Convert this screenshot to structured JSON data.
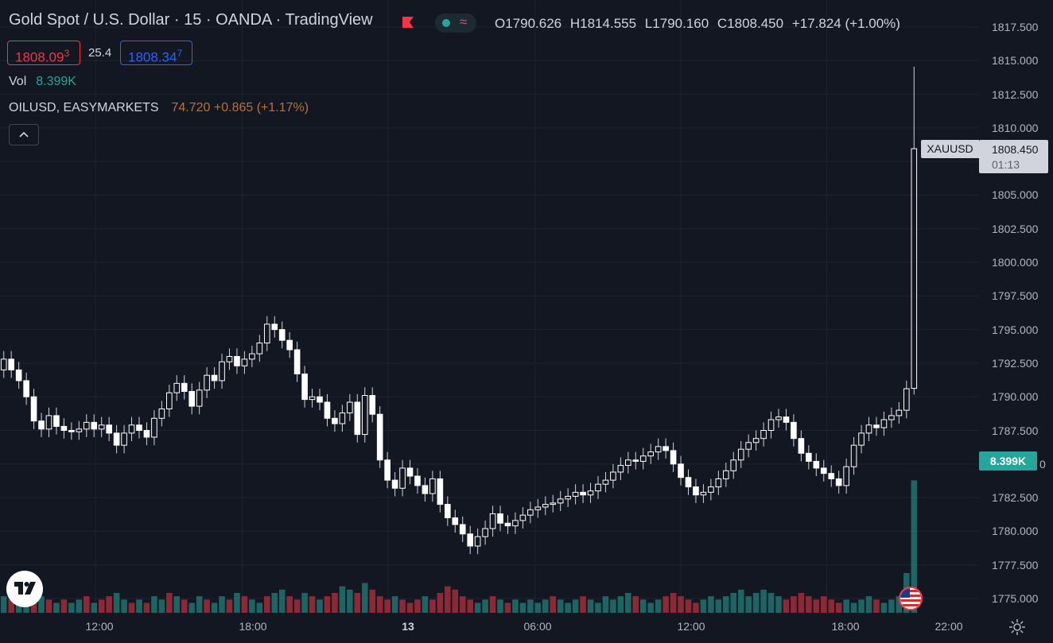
{
  "header": {
    "title": "Gold Spot / U.S. Dollar · 15 · OANDA · TradingView",
    "flag_color": "#f23645",
    "status_dot_color": "#26a69a",
    "status_wave_glyph": "≈",
    "ohlc": {
      "open": "O1790.626",
      "high": "H1814.555",
      "low": "L1790.160",
      "close": "C1808.450",
      "change": "+17.824 (+1.00%)"
    }
  },
  "quote": {
    "bid_main": "1808.09",
    "bid_small": "3",
    "spread": "25.4",
    "ask_main": "1808.34",
    "ask_small": "7"
  },
  "volume_legend": {
    "label": "Vol",
    "value": "8.399K"
  },
  "compare_legend": {
    "symbol": "OILUSD, EASYMARKETS",
    "values": "74.720  +0.865 (+1.17%)"
  },
  "price_axis": {
    "ticks": [
      "1817.500",
      "1815.000",
      "1812.500",
      "1810.000",
      "1805.000",
      "1802.500",
      "1800.000",
      "1797.500",
      "1795.000",
      "1792.500",
      "1790.000",
      "1787.500",
      "1782.500",
      "1780.000",
      "1777.500",
      "1775.000"
    ],
    "last_symbol": "XAUUSD",
    "last_price": "1808.450",
    "countdown": "01:13",
    "volume_tag": "8.399K",
    "partial_label": "0"
  },
  "time_axis": {
    "labels": [
      "12:00",
      "18:00",
      "13",
      "06:00",
      "12:00",
      "18:00",
      "22:00"
    ]
  },
  "chart_data": {
    "type": "candlestick",
    "title": "Gold Spot / U.S. Dollar · 15 · OANDA · TradingView",
    "ylim": [
      1774.5,
      1818.5
    ],
    "xlim": [
      -0.5,
      121.5
    ],
    "colors": {
      "up": "#ffffff",
      "down": "#ffffff",
      "vol_up": "#26a69a",
      "vol_down": "#f23645",
      "grid": "#1f2330"
    },
    "grid": true,
    "x_tick_index": {
      "12:00": 12.2,
      "18:00": 31.7,
      "13": 51.1,
      "06:00": 70.6,
      "12:00b": 90.0,
      "18:00b": 109.4,
      "22:00": 122.4
    },
    "close": [
      1792.8,
      1792.0,
      1791.2,
      1790.0,
      1788.2,
      1787.6,
      1788.6,
      1787.8,
      1787.5,
      1787.4,
      1787.6,
      1788.1,
      1787.6,
      1787.9,
      1787.3,
      1786.4,
      1787.3,
      1787.9,
      1787.5,
      1787.0,
      1788.4,
      1789.1,
      1790.3,
      1791.0,
      1790.4,
      1789.3,
      1790.5,
      1791.6,
      1791.2,
      1792.6,
      1793.0,
      1792.3,
      1792.8,
      1793.2,
      1794.0,
      1795.4,
      1795.0,
      1794.2,
      1793.5,
      1791.7,
      1789.8,
      1790.0,
      1789.6,
      1788.4,
      1788.0,
      1788.8,
      1789.6,
      1787.2,
      1790.1,
      1788.7,
      1785.3,
      1783.8,
      1783.2,
      1784.7,
      1784.1,
      1783.4,
      1782.8,
      1783.9,
      1782.0,
      1781.0,
      1780.5,
      1779.8,
      1778.9,
      1779.6,
      1780.2,
      1781.3,
      1780.6,
      1780.4,
      1780.8,
      1781.2,
      1781.6,
      1781.8,
      1782.0,
      1782.1,
      1782.4,
      1782.6,
      1782.9,
      1782.7,
      1783.0,
      1783.5,
      1783.8,
      1784.4,
      1784.9,
      1785.3,
      1785.2,
      1785.6,
      1785.9,
      1786.3,
      1786.0,
      1785.0,
      1784.0,
      1783.3,
      1782.7,
      1782.9,
      1783.3,
      1783.9,
      1784.5,
      1785.3,
      1786.1,
      1786.6,
      1786.9,
      1787.5,
      1788.3,
      1788.5,
      1788.1,
      1786.9,
      1785.8,
      1785.2,
      1784.7,
      1784.3,
      1783.9,
      1783.4,
      1784.8,
      1786.4,
      1787.3,
      1787.9,
      1787.7,
      1788.3,
      1788.6,
      1789.0,
      1790.6,
      1808.45
    ],
    "open": [
      1792.0,
      1792.8,
      1792.0,
      1791.2,
      1790.0,
      1788.2,
      1787.6,
      1788.6,
      1787.8,
      1787.5,
      1787.4,
      1787.6,
      1788.1,
      1787.6,
      1787.9,
      1787.3,
      1786.4,
      1787.3,
      1787.9,
      1787.5,
      1787.0,
      1788.4,
      1789.1,
      1790.3,
      1791.0,
      1790.4,
      1789.3,
      1790.5,
      1791.6,
      1791.2,
      1792.6,
      1793.0,
      1792.3,
      1792.8,
      1793.2,
      1794.0,
      1795.4,
      1795.0,
      1794.2,
      1793.5,
      1791.7,
      1789.8,
      1790.0,
      1789.6,
      1788.4,
      1788.0,
      1788.8,
      1789.6,
      1787.2,
      1790.1,
      1788.7,
      1785.3,
      1783.8,
      1783.2,
      1784.7,
      1784.1,
      1783.4,
      1782.8,
      1783.9,
      1782.0,
      1781.0,
      1780.5,
      1779.8,
      1778.9,
      1779.6,
      1780.2,
      1781.3,
      1780.6,
      1780.4,
      1780.8,
      1781.2,
      1781.6,
      1781.8,
      1782.0,
      1782.1,
      1782.4,
      1782.6,
      1782.9,
      1782.7,
      1783.0,
      1783.5,
      1783.8,
      1784.4,
      1784.9,
      1785.3,
      1785.2,
      1785.6,
      1785.9,
      1786.3,
      1786.0,
      1785.0,
      1784.0,
      1783.3,
      1782.7,
      1782.9,
      1783.3,
      1783.9,
      1784.5,
      1785.3,
      1786.1,
      1786.6,
      1786.9,
      1787.5,
      1788.3,
      1788.5,
      1788.1,
      1786.9,
      1785.8,
      1785.2,
      1784.7,
      1784.3,
      1783.9,
      1783.4,
      1784.8,
      1786.4,
      1787.3,
      1787.9,
      1787.7,
      1788.3,
      1788.6,
      1789.0,
      1790.626
    ],
    "high_pad": 0.6,
    "low_pad": 0.6,
    "last_high": 1814.555,
    "last_low": 1790.16,
    "volume": [
      5,
      4,
      6,
      4,
      3,
      5,
      4,
      3,
      4,
      3,
      4,
      5,
      3,
      4,
      5,
      6,
      4,
      3,
      4,
      3,
      5,
      4,
      6,
      5,
      4,
      3,
      5,
      4,
      3,
      5,
      4,
      6,
      5,
      4,
      3,
      5,
      6,
      7,
      5,
      4,
      6,
      5,
      4,
      5,
      6,
      8,
      7,
      6,
      9,
      7,
      5,
      4,
      5,
      4,
      3,
      4,
      5,
      4,
      6,
      8,
      7,
      5,
      4,
      3,
      4,
      5,
      4,
      3,
      4,
      3,
      4,
      3,
      4,
      5,
      4,
      3,
      4,
      5,
      4,
      3,
      5,
      4,
      5,
      6,
      5,
      4,
      3,
      4,
      5,
      6,
      5,
      4,
      3,
      4,
      5,
      4,
      5,
      6,
      7,
      5,
      6,
      7,
      6,
      5,
      4,
      5,
      6,
      5,
      4,
      5,
      4,
      3,
      4,
      3,
      4,
      5,
      4,
      3,
      4,
      5,
      12,
      40
    ],
    "volume_max": 48,
    "volume_up": [
      1,
      0,
      1,
      1,
      0,
      1,
      0,
      1,
      0,
      1,
      1,
      0,
      1,
      0,
      0,
      1,
      1,
      0,
      1,
      0,
      1,
      1,
      0,
      1,
      0,
      1,
      1,
      0,
      1,
      1,
      0,
      1,
      0,
      1,
      1,
      0,
      1,
      1,
      0,
      0,
      1,
      0,
      1,
      0,
      0,
      1,
      1,
      0,
      1,
      0,
      0,
      0,
      1,
      0,
      0,
      0,
      1,
      0,
      0,
      0,
      0,
      0,
      0,
      1,
      1,
      0,
      1,
      0,
      1,
      1,
      1,
      1,
      1,
      0,
      1,
      1,
      1,
      0,
      1,
      1,
      1,
      1,
      1,
      1,
      0,
      1,
      1,
      1,
      0,
      0,
      0,
      0,
      0,
      1,
      1,
      1,
      1,
      1,
      1,
      1,
      1,
      1,
      1,
      1,
      0,
      0,
      0,
      0,
      0,
      0,
      0,
      0,
      1,
      1,
      1,
      1,
      0,
      1,
      1,
      1,
      1,
      1
    ]
  }
}
